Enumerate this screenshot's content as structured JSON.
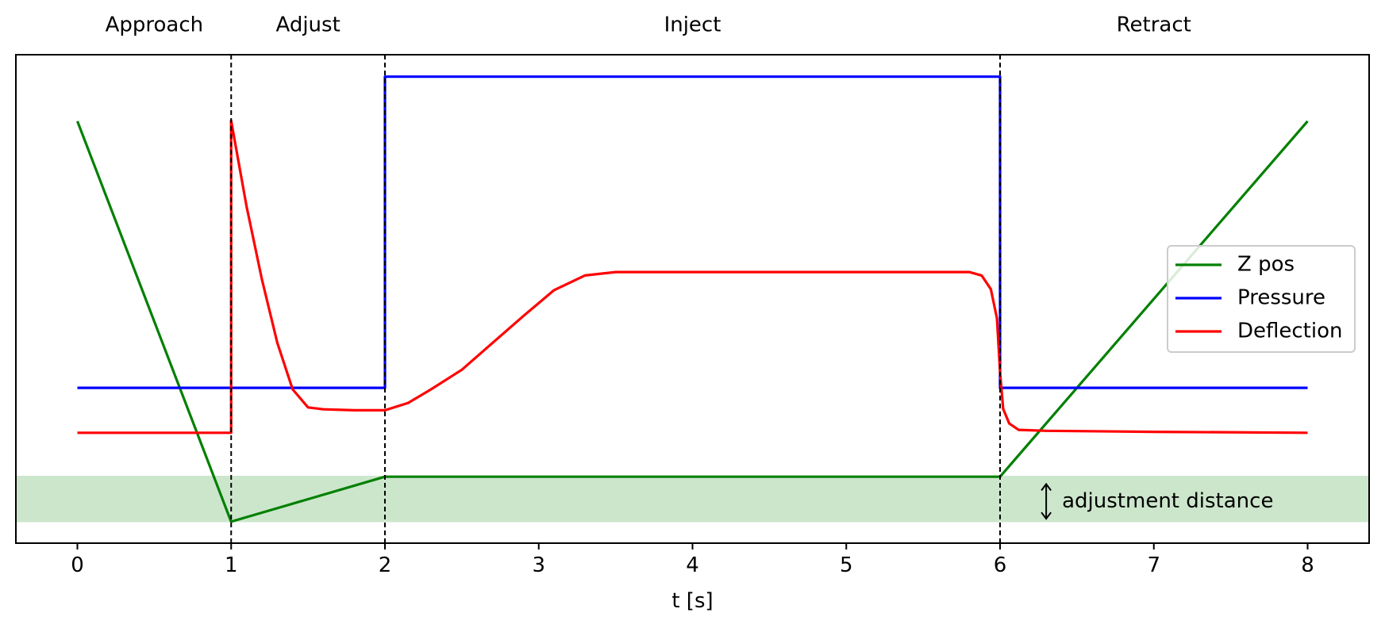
{
  "chart_data": {
    "type": "line",
    "title": "",
    "xlabel": "t [s]",
    "ylabel": "",
    "xlim": [
      -0.4,
      8.4
    ],
    "ylim": [
      0,
      1
    ],
    "xticks": [
      0,
      1,
      2,
      3,
      4,
      5,
      6,
      7,
      8
    ],
    "grid": false,
    "legend": {
      "location": "center-right"
    },
    "phase_boundaries": [
      1,
      2,
      6
    ],
    "phases": [
      {
        "label": "Approach",
        "start": 0,
        "end": 1
      },
      {
        "label": "Adjust",
        "start": 1,
        "end": 2
      },
      {
        "label": "Inject",
        "start": 2,
        "end": 6
      },
      {
        "label": "Retract",
        "start": 6,
        "end": 8
      }
    ],
    "band": {
      "y0": 0.043,
      "y1": 0.138,
      "color": "#cce6cc"
    },
    "annotation": {
      "text": "adjustment distance",
      "x": 6.3,
      "y_from": 0.05,
      "y_to": 0.121
    },
    "series": [
      {
        "name": "Z pos",
        "color": "#008000",
        "x": [
          0,
          1,
          2,
          6,
          8
        ],
        "y": [
          0.864,
          0.044,
          0.136,
          0.136,
          0.864
        ]
      },
      {
        "name": "Pressure",
        "color": "#0000ff",
        "x": [
          0,
          2,
          2,
          6,
          6,
          8
        ],
        "y": [
          0.318,
          0.318,
          0.955,
          0.955,
          0.318,
          0.318
        ]
      },
      {
        "name": "Deflection",
        "color": "#ff0000",
        "x": [
          0,
          1,
          1,
          1.1,
          1.2,
          1.3,
          1.4,
          1.5,
          1.6,
          1.8,
          2.0,
          2.15,
          2.3,
          2.5,
          2.7,
          2.9,
          3.1,
          3.3,
          3.5,
          4.0,
          5.0,
          5.8,
          5.88,
          5.94,
          5.98,
          6.0,
          6.02,
          6.06,
          6.12,
          6.3,
          7.0,
          8.0
        ],
        "y": [
          0.226,
          0.226,
          0.865,
          0.69,
          0.54,
          0.41,
          0.315,
          0.278,
          0.274,
          0.272,
          0.272,
          0.287,
          0.315,
          0.355,
          0.41,
          0.465,
          0.518,
          0.548,
          0.555,
          0.555,
          0.555,
          0.555,
          0.548,
          0.52,
          0.46,
          0.35,
          0.275,
          0.245,
          0.232,
          0.23,
          0.228,
          0.226
        ]
      }
    ]
  }
}
